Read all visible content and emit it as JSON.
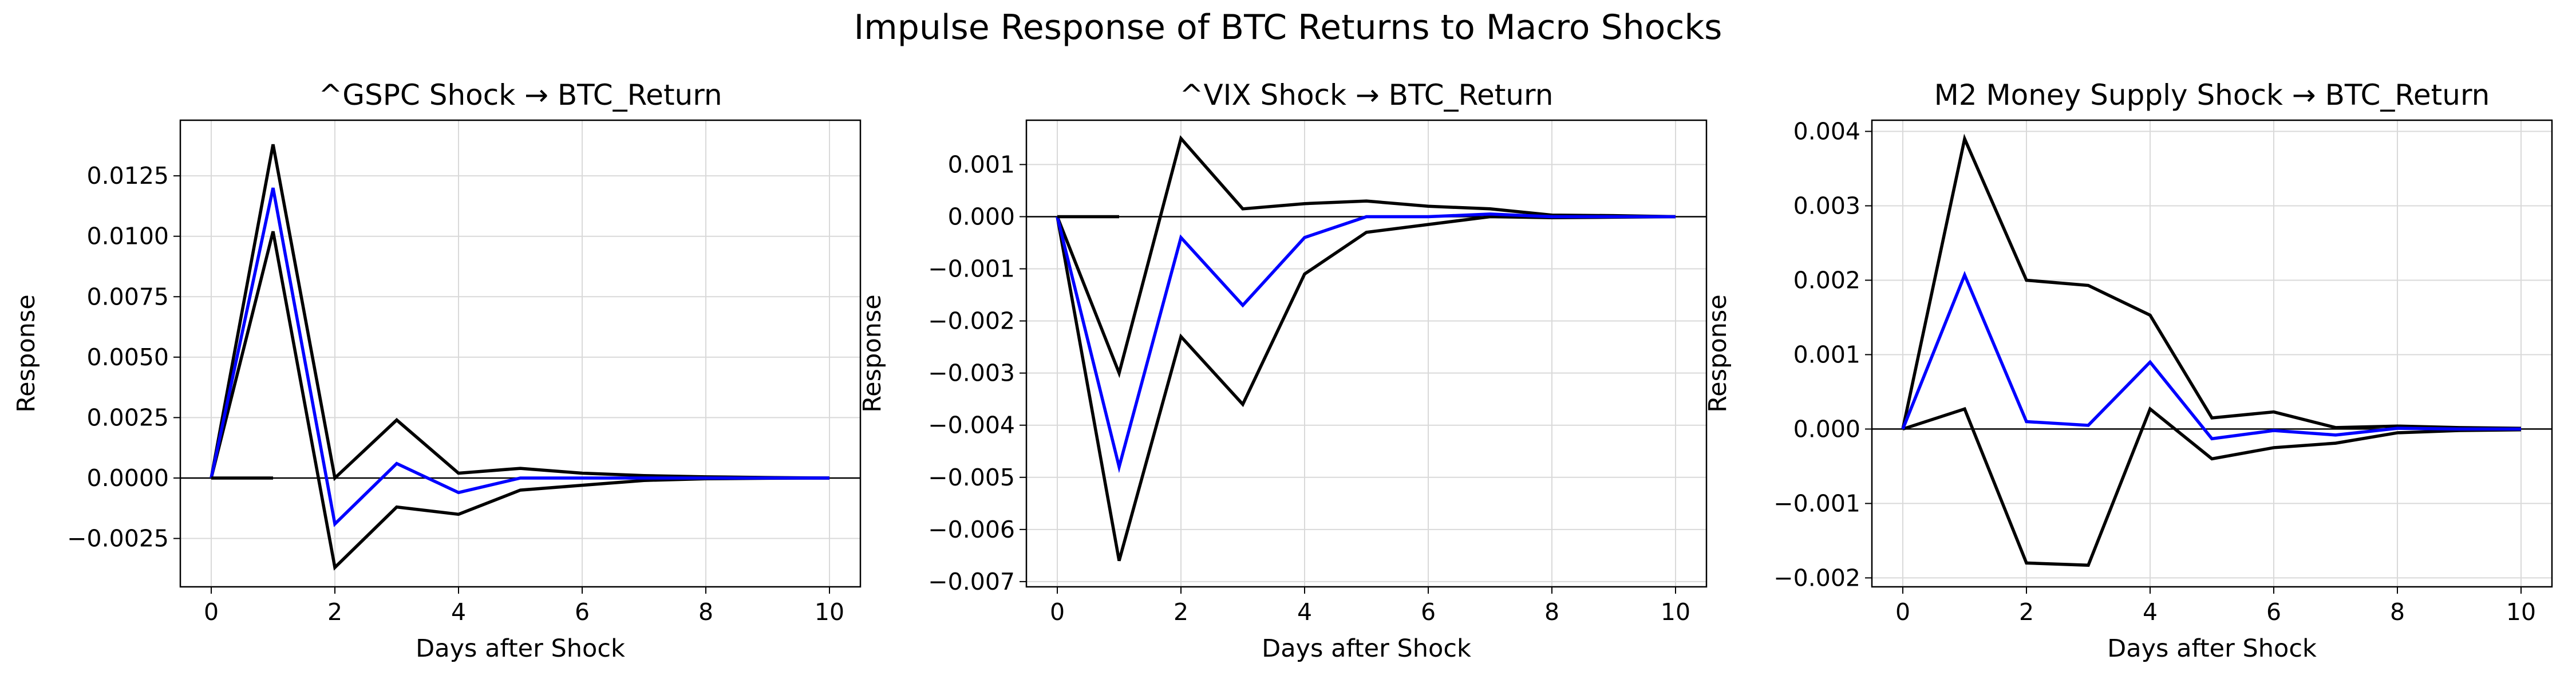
{
  "figure": {
    "title": "Impulse Response of BTC Returns to Macro Shocks"
  },
  "colors": {
    "response": "#0000ff",
    "bands": "#000000",
    "grid": "#d9d9d9"
  },
  "chart_data": [
    {
      "type": "line",
      "title": "^GSPC Shock → BTC_Return",
      "xlabel": "Days after Shock",
      "ylabel": "Response",
      "xlim": [
        -0.5,
        10.5
      ],
      "ylim": [
        -0.0045,
        0.0148
      ],
      "xticks": [
        0,
        2,
        4,
        6,
        8,
        10
      ],
      "xtick_labels": [
        "0",
        "2",
        "4",
        "6",
        "8",
        "10"
      ],
      "yticks": [
        -0.0025,
        0.0,
        0.0025,
        0.005,
        0.0075,
        0.01,
        0.0125
      ],
      "ytick_labels": [
        "−0.0025",
        "0.0000",
        "0.0025",
        "0.0050",
        "0.0075",
        "0.0100",
        "0.0125"
      ],
      "grid": true,
      "x": [
        0,
        1,
        2,
        3,
        4,
        5,
        6,
        7,
        8,
        9,
        10
      ],
      "series": [
        {
          "role": "upper",
          "values": [
            0,
            0.0138,
            0.0,
            0.0024,
            0.0002,
            0.0004,
            0.0002,
            0.0001,
            5e-05,
            2e-05,
            0.0
          ]
        },
        {
          "role": "response",
          "values": [
            0,
            0.012,
            -0.0019,
            0.0006,
            -0.0006,
            0.0,
            0.0,
            0.0,
            0.0,
            0.0,
            0.0
          ]
        },
        {
          "role": "lower",
          "values": [
            0,
            0.0102,
            -0.0037,
            -0.0012,
            -0.0015,
            -0.0005,
            -0.0003,
            -0.0001,
            -3e-05,
            -1e-05,
            0.0
          ]
        }
      ],
      "hline": 0,
      "short_segment": {
        "x": [
          0,
          1
        ],
        "y": [
          0,
          0
        ]
      }
    },
    {
      "type": "line",
      "title": "^VIX Shock → BTC_Return",
      "xlabel": "Days after Shock",
      "ylabel": "Response",
      "xlim": [
        -0.5,
        10.5
      ],
      "ylim": [
        -0.0071,
        0.00185
      ],
      "xticks": [
        0,
        2,
        4,
        6,
        8,
        10
      ],
      "xtick_labels": [
        "0",
        "2",
        "4",
        "6",
        "8",
        "10"
      ],
      "yticks": [
        -0.007,
        -0.006,
        -0.005,
        -0.004,
        -0.003,
        -0.002,
        -0.001,
        0.0,
        0.001
      ],
      "ytick_labels": [
        "−0.007",
        "−0.006",
        "−0.005",
        "−0.004",
        "−0.003",
        "−0.002",
        "−0.001",
        "0.000",
        "0.001"
      ],
      "grid": true,
      "x": [
        0,
        1,
        2,
        3,
        4,
        5,
        6,
        7,
        8,
        9,
        10
      ],
      "series": [
        {
          "role": "upper",
          "values": [
            0,
            -0.003,
            0.0015,
            0.00015,
            0.00025,
            0.0003,
            0.0002,
            0.00015,
            3e-05,
            2e-05,
            0.0
          ]
        },
        {
          "role": "response",
          "values": [
            0,
            -0.0048,
            -0.0004,
            -0.0017,
            -0.0004,
            0.0,
            0.0,
            5e-05,
            0.0,
            0.0,
            0.0
          ]
        },
        {
          "role": "lower",
          "values": [
            0,
            -0.0066,
            -0.0023,
            -0.0036,
            -0.0011,
            -0.0003,
            -0.00015,
            0.0,
            -2e-05,
            -1e-05,
            0.0
          ]
        }
      ],
      "hline": 0,
      "short_segment": {
        "x": [
          0,
          1
        ],
        "y": [
          0,
          0
        ]
      }
    },
    {
      "type": "line",
      "title": "M2 Money Supply Shock → BTC_Return",
      "xlabel": "Days after Shock",
      "ylabel": "Response",
      "xlim": [
        -0.5,
        10.5
      ],
      "ylim": [
        -0.00212,
        0.00415
      ],
      "xticks": [
        0,
        2,
        4,
        6,
        8,
        10
      ],
      "xtick_labels": [
        "0",
        "2",
        "4",
        "6",
        "8",
        "10"
      ],
      "yticks": [
        -0.002,
        -0.001,
        0.0,
        0.001,
        0.002,
        0.003,
        0.004
      ],
      "ytick_labels": [
        "−0.002",
        "−0.001",
        "0.000",
        "0.001",
        "0.002",
        "0.003",
        "0.004"
      ],
      "grid": true,
      "x": [
        0,
        1,
        2,
        3,
        4,
        5,
        6,
        7,
        8,
        9,
        10
      ],
      "series": [
        {
          "role": "upper",
          "values": [
            0,
            0.0039,
            0.002,
            0.00193,
            0.00153,
            0.00015,
            0.00023,
            2e-05,
            4e-05,
            2e-05,
            1e-05
          ]
        },
        {
          "role": "response",
          "values": [
            0,
            0.00207,
            0.0001,
            5e-05,
            0.0009,
            -0.00013,
            -2e-05,
            -8e-05,
            1e-05,
            0.0,
            0.0
          ]
        },
        {
          "role": "lower",
          "values": [
            0,
            0.00027,
            -0.0018,
            -0.00183,
            0.00027,
            -0.0004,
            -0.00025,
            -0.00019,
            -5e-05,
            -2e-05,
            -1e-05
          ]
        }
      ],
      "hline": 0,
      "short_segment": null
    }
  ]
}
